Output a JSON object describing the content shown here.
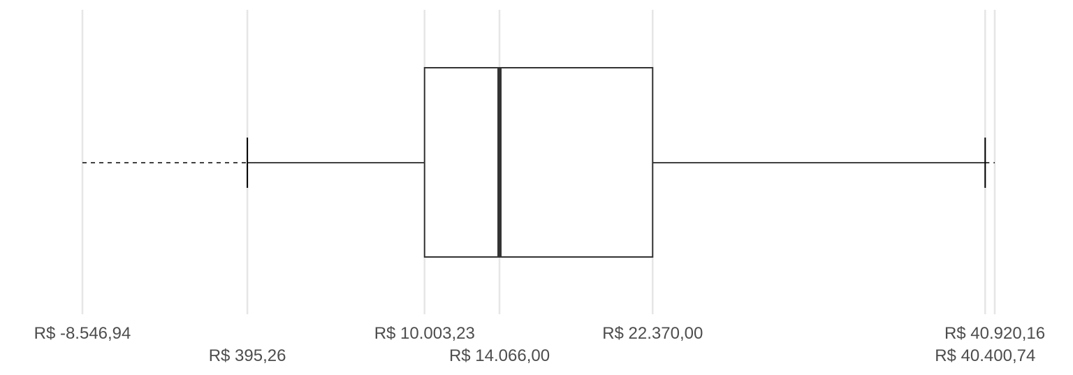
{
  "chart_data": {
    "type": "boxplot",
    "orientation": "horizontal",
    "currency": "R$",
    "grid": "vertical",
    "stats": {
      "lower_fence": -8546.94,
      "lower_whisker": 395.26,
      "q1": 10003.23,
      "median": 14066.0,
      "q3": 22370.0,
      "upper_whisker": 40400.74,
      "upper_fence": 40920.16
    },
    "xlim": [
      -8546.94,
      40920.16
    ],
    "ticks": [
      {
        "key": "lower_fence",
        "value": -8546.94,
        "label": "R$ -8.546,94",
        "row": 1
      },
      {
        "key": "lower_whisker",
        "value": 395.26,
        "label": "R$    395,26",
        "row": 2
      },
      {
        "key": "q1",
        "value": 10003.23,
        "label": "R$ 10.003,23",
        "row": 1
      },
      {
        "key": "median",
        "value": 14066.0,
        "label": "R$ 14.066,00",
        "row": 2
      },
      {
        "key": "q3",
        "value": 22370.0,
        "label": "R$ 22.370,00",
        "row": 1
      },
      {
        "key": "upper_whisker",
        "value": 40400.74,
        "label": "R$ 40.400,74",
        "row": 2
      },
      {
        "key": "upper_fence",
        "value": 40920.16,
        "label": "R$ 40.920,16",
        "row": 1
      }
    ]
  }
}
